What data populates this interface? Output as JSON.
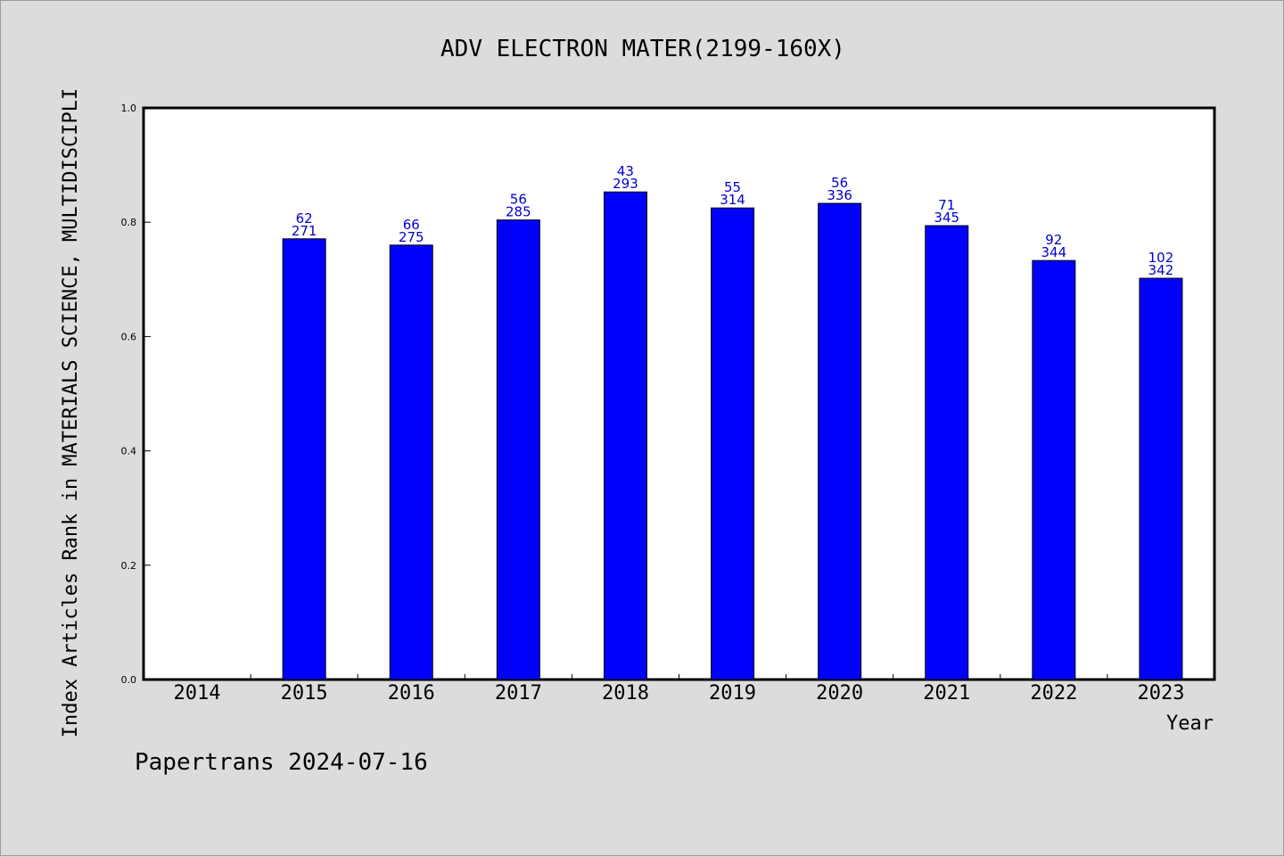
{
  "chart_data": {
    "type": "bar",
    "title": "ADV ELECTRON MATER(2199-160X)",
    "xlabel": "Year",
    "ylabel": "Index Articles Rank in MATERIALS SCIENCE, MULTIDISCIPLI",
    "ylim": [
      0,
      1.0
    ],
    "yticks": [
      "0.0",
      "0.2",
      "0.4",
      "0.6",
      "0.8",
      "1.0"
    ],
    "categories": [
      "2014",
      "2015",
      "2016",
      "2017",
      "2018",
      "2019",
      "2020",
      "2021",
      "2022",
      "2023"
    ],
    "values": [
      null,
      0.771,
      0.76,
      0.804,
      0.853,
      0.825,
      0.833,
      0.794,
      0.733,
      0.702
    ],
    "rank_labels": [
      "",
      "62",
      "66",
      "56",
      "43",
      "55",
      "56",
      "71",
      "92",
      "102"
    ],
    "total_labels": [
      "",
      "271",
      "275",
      "285",
      "293",
      "314",
      "336",
      "345",
      "344",
      "342"
    ],
    "grid": false,
    "bar_color": "#0000ff",
    "label_color": "#0000cc"
  },
  "footer": "Papertrans 2024-07-16"
}
